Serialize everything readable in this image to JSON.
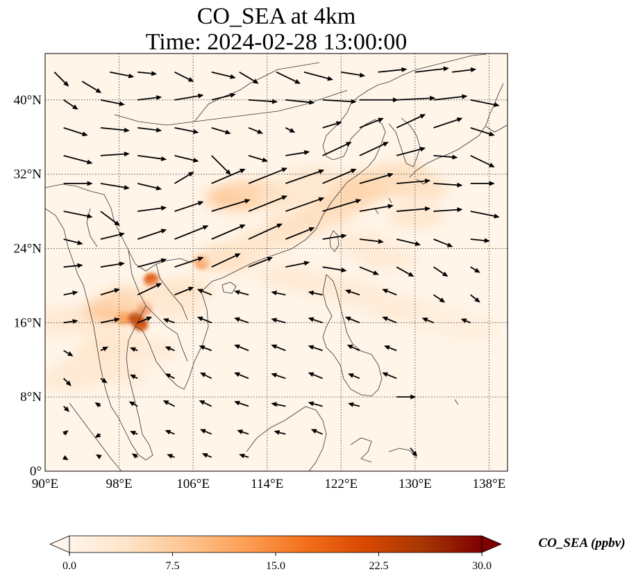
{
  "title": {
    "line1": "CO_SEA at 4km",
    "line2": "Time: 2024-02-28 13:00:00"
  },
  "map": {
    "lon_range": [
      90,
      140
    ],
    "lat_range": [
      0,
      45
    ],
    "lon_ticks": [
      {
        "value": 90,
        "label": "90°E"
      },
      {
        "value": 98,
        "label": "98°E"
      },
      {
        "value": 106,
        "label": "106°E"
      },
      {
        "value": 114,
        "label": "114°E"
      },
      {
        "value": 122,
        "label": "122°E"
      },
      {
        "value": 130,
        "label": "130°E"
      },
      {
        "value": 138,
        "label": "138°E"
      }
    ],
    "lat_ticks": [
      {
        "value": 0,
        "label": "0°"
      },
      {
        "value": 8,
        "label": "8°N"
      },
      {
        "value": 16,
        "label": "16°N"
      },
      {
        "value": 24,
        "label": "24°N"
      },
      {
        "value": 32,
        "label": "32°N"
      },
      {
        "value": 40,
        "label": "40°N"
      }
    ],
    "gridlines": true,
    "colors": {
      "background": "#fff5e9",
      "coast": "#333333",
      "grid": "#555555",
      "wind_vector": "#000000"
    }
  },
  "colorbar": {
    "label": "CO_SEA (ppbv)",
    "range": [
      0,
      30
    ],
    "extend": "both",
    "ticks": [
      {
        "value": 0,
        "label": "0.0"
      },
      {
        "value": 7.5,
        "label": "7.5"
      },
      {
        "value": 15,
        "label": "15.0"
      },
      {
        "value": 22.5,
        "label": "22.5"
      },
      {
        "value": 30,
        "label": "30.0"
      }
    ],
    "colormap": [
      "#fff5eb",
      "#fee3c6",
      "#fdc48f",
      "#fd9e54",
      "#f3701b",
      "#d94801",
      "#a63603",
      "#7f0000"
    ]
  },
  "plume": {
    "cells": [
      {
        "lon": 90.5,
        "lat": 16.3,
        "value": 2
      },
      {
        "lon": 92.5,
        "lat": 16.0,
        "value": 3
      },
      {
        "lon": 95,
        "lat": 16.5,
        "value": 3
      },
      {
        "lon": 97.5,
        "lat": 17.3,
        "value": 9
      },
      {
        "lon": 98.5,
        "lat": 16.5,
        "value": 13
      },
      {
        "lon": 99.8,
        "lat": 16.5,
        "value": 24
      },
      {
        "lon": 100.3,
        "lat": 15.8,
        "value": 22
      },
      {
        "lon": 100.8,
        "lat": 17.6,
        "value": 20
      },
      {
        "lon": 101.5,
        "lat": 20.6,
        "value": 21
      },
      {
        "lon": 99,
        "lat": 18.5,
        "value": 6
      },
      {
        "lon": 97.5,
        "lat": 14.0,
        "value": 4
      },
      {
        "lon": 96,
        "lat": 12.5,
        "value": 4
      },
      {
        "lon": 94.5,
        "lat": 11.0,
        "value": 3
      },
      {
        "lon": 92.5,
        "lat": 10.0,
        "value": 3
      },
      {
        "lon": 98,
        "lat": 10.5,
        "value": 3
      },
      {
        "lon": 101,
        "lat": 13.0,
        "value": 3
      },
      {
        "lon": 103.5,
        "lat": 19.0,
        "value": 3
      },
      {
        "lon": 107,
        "lat": 22.5,
        "value": 17
      },
      {
        "lon": 109,
        "lat": 22.8,
        "value": 5
      },
      {
        "lon": 111,
        "lat": 23.5,
        "value": 4
      },
      {
        "lon": 114,
        "lat": 25.0,
        "value": 4
      },
      {
        "lon": 117,
        "lat": 26.5,
        "value": 5
      },
      {
        "lon": 120,
        "lat": 27.5,
        "value": 5
      },
      {
        "lon": 122,
        "lat": 29.0,
        "value": 6
      },
      {
        "lon": 124,
        "lat": 30.5,
        "value": 7
      },
      {
        "lon": 126,
        "lat": 31.0,
        "value": 6
      },
      {
        "lon": 128.5,
        "lat": 32.0,
        "value": 5
      },
      {
        "lon": 130.5,
        "lat": 30.5,
        "value": 5
      },
      {
        "lon": 130,
        "lat": 27.5,
        "value": 4
      },
      {
        "lon": 110.5,
        "lat": 29.5,
        "value": 9
      },
      {
        "lon": 113,
        "lat": 30.0,
        "value": 6
      },
      {
        "lon": 116,
        "lat": 29.5,
        "value": 4
      },
      {
        "lon": 119,
        "lat": 31.5,
        "value": 4
      },
      {
        "lon": 116,
        "lat": 21.0,
        "value": 3
      },
      {
        "lon": 120,
        "lat": 20.0,
        "value": 3
      },
      {
        "lon": 124,
        "lat": 19.0,
        "value": 3
      },
      {
        "lon": 128,
        "lat": 17.5,
        "value": 3
      },
      {
        "lon": 132,
        "lat": 16.5,
        "value": 2
      },
      {
        "lon": 136,
        "lat": 15.5,
        "value": 2
      },
      {
        "lon": 124,
        "lat": 24.5,
        "value": 3
      },
      {
        "lon": 127,
        "lat": 23.0,
        "value": 3
      },
      {
        "lon": 105,
        "lat": 19.5,
        "value": 4
      },
      {
        "lon": 104,
        "lat": 17.5,
        "value": 3
      }
    ]
  },
  "wind_vectors": [
    {
      "lon": 91,
      "lat": 43,
      "u": 1.5,
      "v": -1.5
    },
    {
      "lon": 94,
      "lat": 42,
      "u": 2,
      "v": -1.2
    },
    {
      "lon": 97,
      "lat": 43,
      "u": 2.5,
      "v": -0.5
    },
    {
      "lon": 100,
      "lat": 43,
      "u": 2,
      "v": -0.2
    },
    {
      "lon": 104,
      "lat": 43,
      "u": 2,
      "v": -1
    },
    {
      "lon": 108,
      "lat": 43,
      "u": 2.5,
      "v": -0.6
    },
    {
      "lon": 111,
      "lat": 43,
      "u": 2,
      "v": -1.2
    },
    {
      "lon": 115,
      "lat": 43,
      "u": 2.5,
      "v": -1.2
    },
    {
      "lon": 118,
      "lat": 43,
      "u": 3,
      "v": -0.8
    },
    {
      "lon": 122,
      "lat": 43,
      "u": 2.5,
      "v": -0.4
    },
    {
      "lon": 126,
      "lat": 43,
      "u": 3,
      "v": 0.3
    },
    {
      "lon": 130,
      "lat": 43,
      "u": 3.5,
      "v": 0.4
    },
    {
      "lon": 134,
      "lat": 43,
      "u": 2.5,
      "v": 0.3
    },
    {
      "lon": 92,
      "lat": 40,
      "u": 1.5,
      "v": -1
    },
    {
      "lon": 96,
      "lat": 40,
      "u": 2.5,
      "v": -0.5
    },
    {
      "lon": 100,
      "lat": 40,
      "u": 2.5,
      "v": 0.3
    },
    {
      "lon": 104,
      "lat": 40,
      "u": 3,
      "v": 0.5
    },
    {
      "lon": 108,
      "lat": 40,
      "u": 2.5,
      "v": 0.6
    },
    {
      "lon": 112,
      "lat": 40,
      "u": 3,
      "v": -0.2
    },
    {
      "lon": 116,
      "lat": 40,
      "u": 3,
      "v": -0.3
    },
    {
      "lon": 120,
      "lat": 40,
      "u": 3.5,
      "v": -0.2
    },
    {
      "lon": 124,
      "lat": 40,
      "u": 4,
      "v": 0
    },
    {
      "lon": 128,
      "lat": 40,
      "u": 4,
      "v": 0.2
    },
    {
      "lon": 132,
      "lat": 40,
      "u": 3.5,
      "v": 0.4
    },
    {
      "lon": 136,
      "lat": 40,
      "u": 3,
      "v": -0.6
    },
    {
      "lon": 92,
      "lat": 37,
      "u": 2.5,
      "v": -0.8
    },
    {
      "lon": 96,
      "lat": 37,
      "u": 3,
      "v": -0.3
    },
    {
      "lon": 100,
      "lat": 37,
      "u": 2.5,
      "v": -0.3
    },
    {
      "lon": 104,
      "lat": 37,
      "u": 2.5,
      "v": -0.5
    },
    {
      "lon": 108,
      "lat": 37,
      "u": 2,
      "v": -0.6
    },
    {
      "lon": 112,
      "lat": 37,
      "u": 1.5,
      "v": -0.6
    },
    {
      "lon": 116,
      "lat": 37,
      "u": 1,
      "v": -0.5
    },
    {
      "lon": 120,
      "lat": 37,
      "u": 2,
      "v": 0.6
    },
    {
      "lon": 124,
      "lat": 37,
      "u": 2.5,
      "v": 1
    },
    {
      "lon": 128,
      "lat": 37,
      "u": 3,
      "v": 1.4
    },
    {
      "lon": 132,
      "lat": 37,
      "u": 3,
      "v": 1
    },
    {
      "lon": 136,
      "lat": 37,
      "u": 2.5,
      "v": -0.8
    },
    {
      "lon": 92,
      "lat": 34,
      "u": 3,
      "v": -0.8
    },
    {
      "lon": 96,
      "lat": 34,
      "u": 3,
      "v": 0.2
    },
    {
      "lon": 100,
      "lat": 34,
      "u": 3,
      "v": -0.4
    },
    {
      "lon": 104,
      "lat": 34,
      "u": 2.5,
      "v": -0.6
    },
    {
      "lon": 108,
      "lat": 34,
      "u": 2,
      "v": -2
    },
    {
      "lon": 112,
      "lat": 34,
      "u": 2,
      "v": -0.6
    },
    {
      "lon": 116,
      "lat": 34,
      "u": 2.5,
      "v": 0.4
    },
    {
      "lon": 120,
      "lat": 34,
      "u": 3,
      "v": 1.4
    },
    {
      "lon": 124,
      "lat": 34,
      "u": 3,
      "v": 1.4
    },
    {
      "lon": 128,
      "lat": 34,
      "u": 3,
      "v": 0.8
    },
    {
      "lon": 132,
      "lat": 34,
      "u": 2.5,
      "v": -0.2
    },
    {
      "lon": 136,
      "lat": 34,
      "u": 2.5,
      "v": -1.2
    },
    {
      "lon": 92,
      "lat": 31,
      "u": 3,
      "v": 0
    },
    {
      "lon": 96,
      "lat": 31,
      "u": 3,
      "v": -0.5
    },
    {
      "lon": 100,
      "lat": 31,
      "u": 2.5,
      "v": -0.6
    },
    {
      "lon": 104,
      "lat": 31,
      "u": 2,
      "v": 1.2
    },
    {
      "lon": 108,
      "lat": 31,
      "u": 3.5,
      "v": 1.5
    },
    {
      "lon": 112,
      "lat": 31,
      "u": 4,
      "v": 1.6
    },
    {
      "lon": 116,
      "lat": 31,
      "u": 4,
      "v": 1.4
    },
    {
      "lon": 120,
      "lat": 31,
      "u": 3.5,
      "v": 1.5
    },
    {
      "lon": 124,
      "lat": 31,
      "u": 3.5,
      "v": 1
    },
    {
      "lon": 128,
      "lat": 31,
      "u": 3.5,
      "v": 0.3
    },
    {
      "lon": 132,
      "lat": 31,
      "u": 3,
      "v": -0.2
    },
    {
      "lon": 136,
      "lat": 31,
      "u": 2.5,
      "v": 0
    },
    {
      "lon": 92,
      "lat": 28,
      "u": 3,
      "v": -0.6
    },
    {
      "lon": 96,
      "lat": 28,
      "u": 2,
      "v": -1.5
    },
    {
      "lon": 100,
      "lat": 28,
      "u": 3,
      "v": 0.4
    },
    {
      "lon": 104,
      "lat": 28,
      "u": 3,
      "v": 1
    },
    {
      "lon": 108,
      "lat": 28,
      "u": 4,
      "v": 1.2
    },
    {
      "lon": 112,
      "lat": 28,
      "u": 4,
      "v": 1.6
    },
    {
      "lon": 116,
      "lat": 28,
      "u": 4,
      "v": 1.4
    },
    {
      "lon": 120,
      "lat": 28,
      "u": 4,
      "v": 1.2
    },
    {
      "lon": 124,
      "lat": 28,
      "u": 3.5,
      "v": 0.6
    },
    {
      "lon": 128,
      "lat": 28,
      "u": 3.5,
      "v": 0.3
    },
    {
      "lon": 132,
      "lat": 28,
      "u": 3,
      "v": 0.2
    },
    {
      "lon": 136,
      "lat": 28,
      "u": 3,
      "v": -0.6
    },
    {
      "lon": 92,
      "lat": 25,
      "u": 2,
      "v": -0.5
    },
    {
      "lon": 96,
      "lat": 25,
      "u": 2.5,
      "v": 0.6
    },
    {
      "lon": 100,
      "lat": 25,
      "u": 3,
      "v": 1
    },
    {
      "lon": 104,
      "lat": 25,
      "u": 3.5,
      "v": 1.4
    },
    {
      "lon": 108,
      "lat": 25,
      "u": 3.5,
      "v": 1.5
    },
    {
      "lon": 112,
      "lat": 25,
      "u": 3.5,
      "v": 1.6
    },
    {
      "lon": 116,
      "lat": 25,
      "u": 3,
      "v": 1.2
    },
    {
      "lon": 120,
      "lat": 25,
      "u": 2.5,
      "v": 0.4
    },
    {
      "lon": 124,
      "lat": 25,
      "u": 2.5,
      "v": -0.3
    },
    {
      "lon": 128,
      "lat": 25,
      "u": 2.5,
      "v": -0.6
    },
    {
      "lon": 132,
      "lat": 25,
      "u": 2,
      "v": -0.8
    },
    {
      "lon": 136,
      "lat": 25,
      "u": 2,
      "v": -0.2
    },
    {
      "lon": 92,
      "lat": 22,
      "u": 2,
      "v": 0.2
    },
    {
      "lon": 96,
      "lat": 22,
      "u": 2.5,
      "v": 0.4
    },
    {
      "lon": 100,
      "lat": 22,
      "u": 3,
      "v": 0.8
    },
    {
      "lon": 104,
      "lat": 22,
      "u": 3,
      "v": 1
    },
    {
      "lon": 108,
      "lat": 22,
      "u": 3,
      "v": 1.4
    },
    {
      "lon": 112,
      "lat": 22,
      "u": 2.5,
      "v": 1
    },
    {
      "lon": 116,
      "lat": 22,
      "u": 2.5,
      "v": 0.5
    },
    {
      "lon": 120,
      "lat": 22,
      "u": 2.5,
      "v": -0.4
    },
    {
      "lon": 124,
      "lat": 22,
      "u": 2,
      "v": -0.8
    },
    {
      "lon": 128,
      "lat": 22,
      "u": 1.8,
      "v": -1
    },
    {
      "lon": 132,
      "lat": 22,
      "u": 1.5,
      "v": -1
    },
    {
      "lon": 136,
      "lat": 22,
      "u": 1,
      "v": -0.6
    },
    {
      "lon": 92,
      "lat": 19,
      "u": 1.5,
      "v": 0.3
    },
    {
      "lon": 96,
      "lat": 19,
      "u": 2,
      "v": 0.6
    },
    {
      "lon": 100,
      "lat": 19,
      "u": 2.5,
      "v": 1.2
    },
    {
      "lon": 104,
      "lat": 19,
      "u": 2,
      "v": 0.8
    },
    {
      "lon": 108,
      "lat": 19,
      "u": -1.5,
      "v": 0.6
    },
    {
      "lon": 112,
      "lat": 19,
      "u": -1.5,
      "v": 0.4
    },
    {
      "lon": 116,
      "lat": 19,
      "u": -1.5,
      "v": 0.3
    },
    {
      "lon": 120,
      "lat": 19,
      "u": -1.5,
      "v": 0.3
    },
    {
      "lon": 124,
      "lat": 19,
      "u": -1.5,
      "v": 0.5
    },
    {
      "lon": 128,
      "lat": 19,
      "u": -1.5,
      "v": 0.6
    },
    {
      "lon": 132,
      "lat": 19,
      "u": 1.2,
      "v": -0.8
    },
    {
      "lon": 136,
      "lat": 19,
      "u": 1,
      "v": -0.8
    },
    {
      "lon": 92,
      "lat": 16,
      "u": 1.5,
      "v": 0.2
    },
    {
      "lon": 96,
      "lat": 16,
      "u": 2,
      "v": 0.4
    },
    {
      "lon": 100,
      "lat": 16,
      "u": 1.5,
      "v": 0.6
    },
    {
      "lon": 104,
      "lat": 16,
      "u": -1.2,
      "v": 0.4
    },
    {
      "lon": 108,
      "lat": 16,
      "u": -1.5,
      "v": 0.6
    },
    {
      "lon": 112,
      "lat": 16,
      "u": -1.5,
      "v": 0.5
    },
    {
      "lon": 116,
      "lat": 16,
      "u": -1.5,
      "v": 0.4
    },
    {
      "lon": 120,
      "lat": 16,
      "u": -1.5,
      "v": 0.5
    },
    {
      "lon": 124,
      "lat": 16,
      "u": -1.5,
      "v": 0.6
    },
    {
      "lon": 128,
      "lat": 16,
      "u": -1.5,
      "v": 0.6
    },
    {
      "lon": 132,
      "lat": 16,
      "u": -1.2,
      "v": 0.5
    },
    {
      "lon": 136,
      "lat": 16,
      "u": -1,
      "v": 0.4
    },
    {
      "lon": 92,
      "lat": 13,
      "u": 1,
      "v": -0.6
    },
    {
      "lon": 96,
      "lat": 13,
      "u": 0.8,
      "v": 0.4
    },
    {
      "lon": 100,
      "lat": 13,
      "u": -0.8,
      "v": 0.3
    },
    {
      "lon": 104,
      "lat": 13,
      "u": -1,
      "v": 0.4
    },
    {
      "lon": 108,
      "lat": 13,
      "u": -1.3,
      "v": 0.5
    },
    {
      "lon": 112,
      "lat": 13,
      "u": -1.5,
      "v": 0.6
    },
    {
      "lon": 116,
      "lat": 13,
      "u": -1.5,
      "v": 0.6
    },
    {
      "lon": 120,
      "lat": 13,
      "u": -1.5,
      "v": 0.5
    },
    {
      "lon": 124,
      "lat": 13,
      "u": -1.3,
      "v": 0.6
    },
    {
      "lon": 128,
      "lat": 13,
      "u": -1.3,
      "v": 0.5
    },
    {
      "lon": 92,
      "lat": 10,
      "u": 0.8,
      "v": -0.8
    },
    {
      "lon": 96,
      "lat": 10,
      "u": 0.7,
      "v": -0.5
    },
    {
      "lon": 100,
      "lat": 10,
      "u": -0.8,
      "v": 0.4
    },
    {
      "lon": 104,
      "lat": 10,
      "u": -1,
      "v": 0.5
    },
    {
      "lon": 108,
      "lat": 10,
      "u": -1.2,
      "v": 0.6
    },
    {
      "lon": 112,
      "lat": 10,
      "u": -1.5,
      "v": 0.6
    },
    {
      "lon": 116,
      "lat": 10,
      "u": -1.5,
      "v": 0.5
    },
    {
      "lon": 120,
      "lat": 10,
      "u": -1.5,
      "v": 0.6
    },
    {
      "lon": 124,
      "lat": 10,
      "u": -1.2,
      "v": 0.5
    },
    {
      "lon": 128,
      "lat": 10,
      "u": -1.5,
      "v": 0.6
    },
    {
      "lon": 92,
      "lat": 7,
      "u": 0.6,
      "v": -0.6
    },
    {
      "lon": 96,
      "lat": 7,
      "u": -0.6,
      "v": 0.4
    },
    {
      "lon": 100,
      "lat": 7,
      "u": -0.9,
      "v": 0.5
    },
    {
      "lon": 104,
      "lat": 7,
      "u": -1.2,
      "v": 0.6
    },
    {
      "lon": 108,
      "lat": 7,
      "u": -1.3,
      "v": 0.6
    },
    {
      "lon": 112,
      "lat": 7,
      "u": -1.5,
      "v": 0.5
    },
    {
      "lon": 116,
      "lat": 7,
      "u": -1.5,
      "v": 0.3
    },
    {
      "lon": 120,
      "lat": 7,
      "u": -1.5,
      "v": 0.4
    },
    {
      "lon": 124,
      "lat": 7,
      "u": -1.2,
      "v": 0.3
    },
    {
      "lon": 128,
      "lat": 8,
      "u": 2,
      "v": 0
    },
    {
      "lon": 92,
      "lat": 4,
      "u": 0.5,
      "v": 0.4
    },
    {
      "lon": 96,
      "lat": 4,
      "u": -0.6,
      "v": -0.4
    },
    {
      "lon": 100,
      "lat": 4,
      "u": -0.8,
      "v": 0.3
    },
    {
      "lon": 104,
      "lat": 4,
      "u": -1,
      "v": 0.4
    },
    {
      "lon": 108,
      "lat": 4,
      "u": -1.2,
      "v": 0.5
    },
    {
      "lon": 112,
      "lat": 4,
      "u": -1.2,
      "v": 0.4
    },
    {
      "lon": 116,
      "lat": 4,
      "u": -1.2,
      "v": 0.3
    },
    {
      "lon": 120,
      "lat": 4,
      "u": -1.2,
      "v": 0.5
    },
    {
      "lon": 92,
      "lat": 1.5,
      "u": 0.5,
      "v": -0.3
    },
    {
      "lon": 96,
      "lat": 1.5,
      "u": -0.5,
      "v": 0.3
    },
    {
      "lon": 100,
      "lat": 1.5,
      "u": -0.6,
      "v": 0.4
    },
    {
      "lon": 104,
      "lat": 1.5,
      "u": -0.8,
      "v": 0.3
    },
    {
      "lon": 108,
      "lat": 1.5,
      "u": -1,
      "v": 0.4
    },
    {
      "lon": 112,
      "lat": 1.5,
      "u": -1,
      "v": 0.3
    },
    {
      "lon": 129.5,
      "lat": 2.5,
      "u": 0.7,
      "v": -0.9
    }
  ]
}
